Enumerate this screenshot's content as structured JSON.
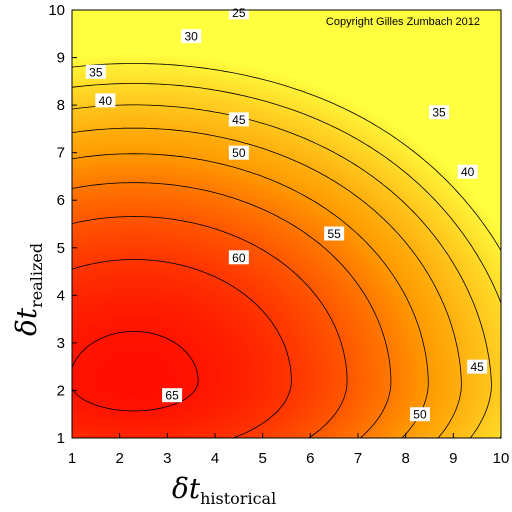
{
  "chart_data": {
    "type": "heatmap",
    "subtype": "filled-contour",
    "title": "",
    "annotation": "Copyright Gilles Zumbach 2012",
    "xlabel": {
      "main": "δt",
      "subscript": "historical"
    },
    "ylabel": {
      "main": "δt",
      "subscript": "realized"
    },
    "xlim": [
      1,
      10
    ],
    "ylim": [
      1,
      10
    ],
    "x_ticks": [
      1,
      2,
      3,
      4,
      5,
      6,
      7,
      8,
      9,
      10
    ],
    "y_ticks": [
      1,
      2,
      3,
      4,
      5,
      6,
      7,
      8,
      9,
      10
    ],
    "grid": false,
    "colorscale": {
      "low": "#ffff40",
      "mid": "#ff9a00",
      "high": "#ff0000"
    },
    "value_range": [
      22,
      68
    ],
    "contour_levels": [
      25,
      30,
      35,
      40,
      45,
      50,
      55,
      60,
      65
    ],
    "contour_labels": [
      {
        "level": 25,
        "x": 4.5,
        "y": 9.95
      },
      {
        "level": 30,
        "x": 3.5,
        "y": 9.45
      },
      {
        "level": 35,
        "x": 1.5,
        "y": 8.7
      },
      {
        "level": 35,
        "x": 8.7,
        "y": 7.85
      },
      {
        "level": 40,
        "x": 1.7,
        "y": 8.1
      },
      {
        "level": 40,
        "x": 9.3,
        "y": 6.6
      },
      {
        "level": 45,
        "x": 4.5,
        "y": 7.7
      },
      {
        "level": 45,
        "x": 9.5,
        "y": 2.5
      },
      {
        "level": 50,
        "x": 4.5,
        "y": 7.0
      },
      {
        "level": 50,
        "x": 8.3,
        "y": 1.5
      },
      {
        "level": 55,
        "x": 6.5,
        "y": 5.3
      },
      {
        "level": 60,
        "x": 4.5,
        "y": 4.8
      },
      {
        "level": 65,
        "x": 3.1,
        "y": 1.9
      }
    ],
    "peak": {
      "x": 2.3,
      "y": 2.2,
      "value": 66
    }
  }
}
